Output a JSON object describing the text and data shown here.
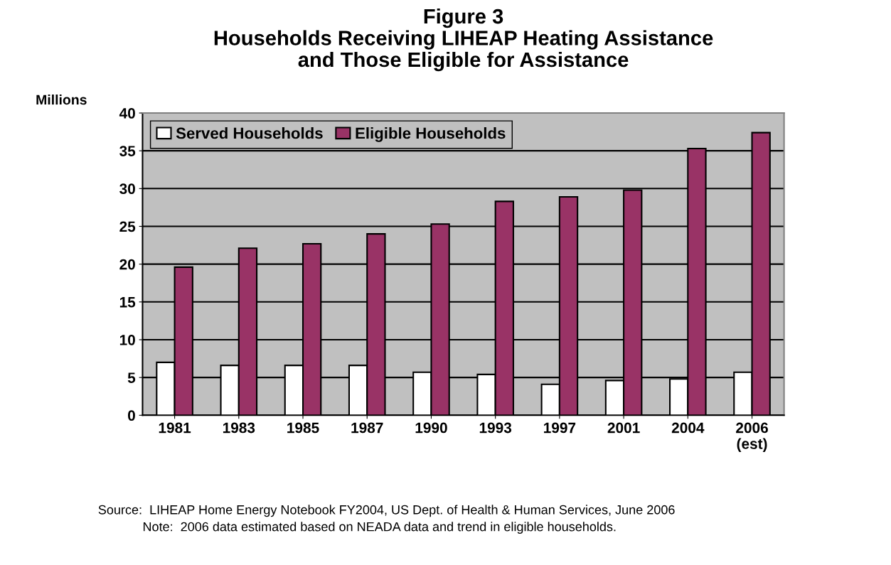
{
  "chart_data": {
    "type": "bar",
    "title": "Figure 3\nHouseholds Receiving LIHEAP Heating Assistance\nand Those Eligible for Assistance",
    "ylabel": "Millions",
    "categories": [
      "1981",
      "1983",
      "1985",
      "1987",
      "1990",
      "1993",
      "1997",
      "2001",
      "2004",
      "2006\n(est)"
    ],
    "series": [
      {
        "name": "Served Households",
        "color": "#ffffff",
        "values": [
          7.0,
          6.6,
          6.6,
          6.6,
          5.7,
          5.4,
          4.1,
          4.6,
          4.8,
          5.7
        ]
      },
      {
        "name": "Eligible Households",
        "color": "#993366",
        "values": [
          19.6,
          22.1,
          22.7,
          24.0,
          25.3,
          28.3,
          28.9,
          29.8,
          35.3,
          37.4
        ]
      }
    ],
    "ylim": [
      0,
      40
    ],
    "yticks": [
      0,
      5,
      10,
      15,
      20,
      25,
      30,
      35,
      40
    ],
    "grid": "y",
    "legend": "top left",
    "annotations": [
      "Source:  LIHEAP Home Energy Notebook FY2004, US Dept. of Health & Human Services, June 2006",
      "Note:  2006 data estimated based on NEADA data and trend in eligible households."
    ]
  }
}
